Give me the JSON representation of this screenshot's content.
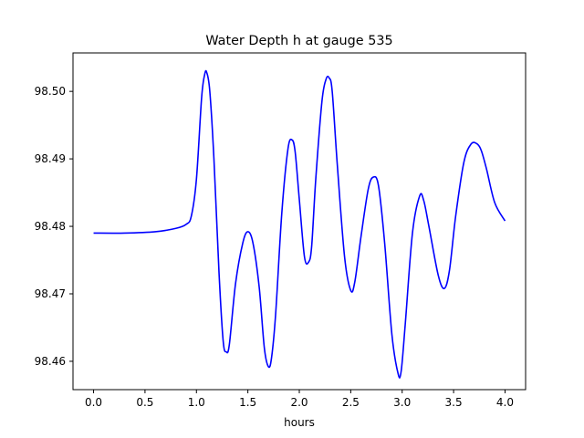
{
  "chart_data": {
    "type": "line",
    "title": "Water Depth h at gauge 535",
    "xlabel": "hours",
    "ylabel": "",
    "xlim": [
      -0.2,
      4.2
    ],
    "ylim": [
      98.4558,
      98.5057
    ],
    "xticks": [
      0.0,
      0.5,
      1.0,
      1.5,
      2.0,
      2.5,
      3.0,
      3.5,
      4.0
    ],
    "xtick_labels": [
      "0.0",
      "0.5",
      "1.0",
      "1.5",
      "2.0",
      "2.5",
      "3.0",
      "3.5",
      "4.0"
    ],
    "yticks": [
      98.46,
      98.47,
      98.48,
      98.49,
      98.5
    ],
    "ytick_labels": [
      "98.46",
      "98.47",
      "98.48",
      "98.49",
      "98.50"
    ],
    "grid": false,
    "legend": "none",
    "series": [
      {
        "color": "#0000ff",
        "x": [
          0.0,
          0.3,
          0.6,
          0.8,
          0.9,
          0.95,
          1.0,
          1.05,
          1.08,
          1.1,
          1.13,
          1.17,
          1.22,
          1.26,
          1.29,
          1.32,
          1.38,
          1.45,
          1.5,
          1.55,
          1.61,
          1.66,
          1.7,
          1.73,
          1.77,
          1.83,
          1.89,
          1.93,
          1.96,
          2.0,
          2.05,
          2.09,
          2.12,
          2.16,
          2.22,
          2.26,
          2.29,
          2.32,
          2.37,
          2.44,
          2.5,
          2.54,
          2.6,
          2.67,
          2.72,
          2.77,
          2.83,
          2.9,
          2.96,
          2.99,
          3.03,
          3.1,
          3.17,
          3.21,
          3.26,
          3.35,
          3.41,
          3.46,
          3.52,
          3.6,
          3.67,
          3.73,
          3.77,
          3.82,
          3.9,
          4.0
        ],
        "y": [
          98.479,
          98.479,
          98.4792,
          98.4797,
          98.4803,
          98.4815,
          98.487,
          98.499,
          98.5025,
          98.5028,
          98.5,
          98.49,
          98.473,
          98.463,
          98.4614,
          98.4625,
          98.4715,
          98.4775,
          98.4792,
          98.4775,
          98.471,
          98.462,
          98.4592,
          98.4605,
          98.467,
          98.482,
          98.4915,
          98.4928,
          98.491,
          98.484,
          98.4755,
          98.4747,
          98.477,
          98.487,
          98.4985,
          98.5018,
          98.502,
          98.5,
          98.489,
          98.4755,
          98.4705,
          98.4718,
          98.4785,
          98.4855,
          98.4873,
          98.486,
          98.4775,
          98.464,
          98.4582,
          98.4585,
          98.4655,
          98.479,
          98.4845,
          98.4838,
          98.48,
          98.4728,
          98.4708,
          98.4735,
          98.4815,
          98.4895,
          98.4922,
          98.4922,
          98.4912,
          98.4885,
          98.4835,
          98.4808
        ]
      }
    ]
  }
}
